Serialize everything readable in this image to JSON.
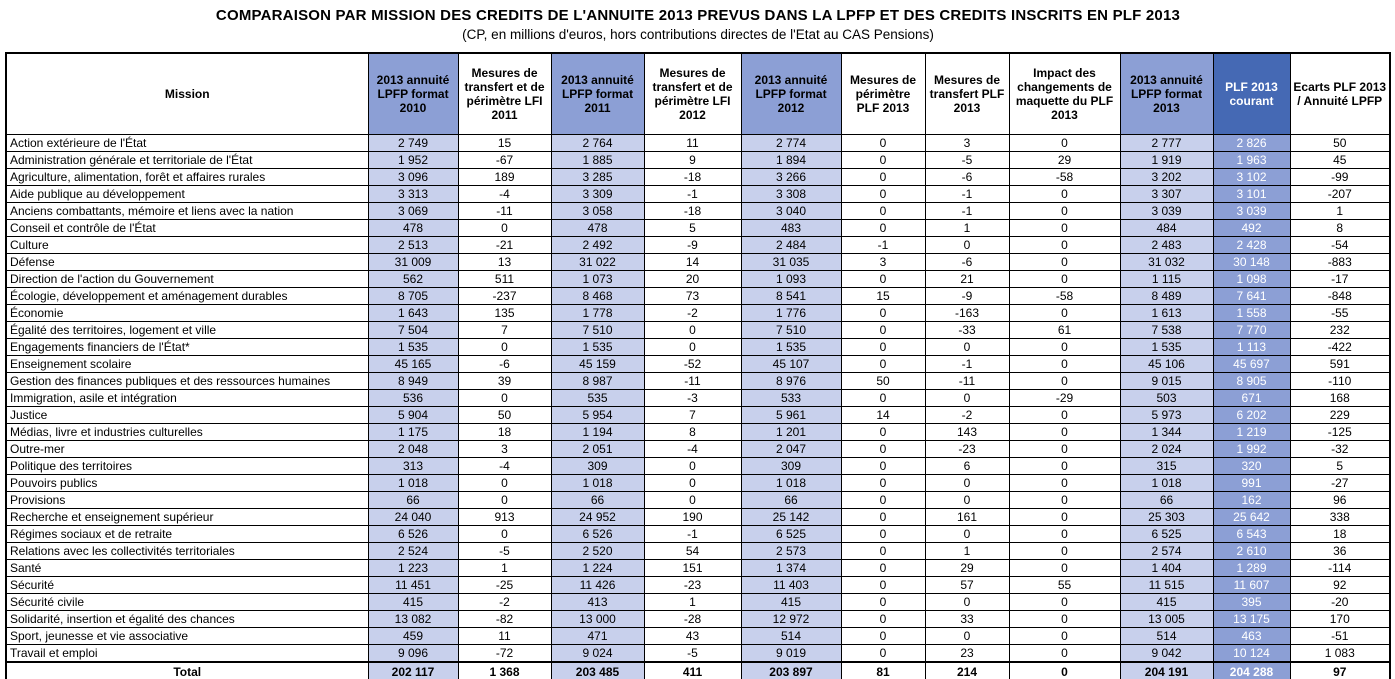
{
  "title": "COMPARAISON PAR MISSION DES CREDITS DE L'ANNUITE 2013 PREVUS DANS LA LPFP ET DES CREDITS INSCRITS EN PLF 2013",
  "subtitle": "(CP, en millions d'euros, hors contributions directes de l'Etat au CAS Pensions)",
  "colors": {
    "annuite_header": "#8C9FD5",
    "annuite_cell": "#C8D0EC",
    "plf_header": "#4569B4",
    "plf_cell": "#8C9FD5",
    "border": "#000000"
  },
  "table": {
    "columns": [
      {
        "label": "Mission",
        "type": "mission"
      },
      {
        "label": "2013 annuité LPFP format 2010",
        "type": "annuite"
      },
      {
        "label": "Mesures de transfert et de périmètre LFI 2011",
        "type": "measure"
      },
      {
        "label": "2013 annuité LPFP format 2011",
        "type": "annuite"
      },
      {
        "label": "Mesures de transfert et de périmètre LFI 2012",
        "type": "measure"
      },
      {
        "label": "2013 annuité LPFP format 2012",
        "type": "annuite"
      },
      {
        "label": "Mesures de périmètre PLF 2013",
        "type": "measure"
      },
      {
        "label": "Mesures de transfert PLF 2013",
        "type": "measure"
      },
      {
        "label": "Impact des changements de maquette du PLF 2013",
        "type": "measure"
      },
      {
        "label": "2013 annuité LPFP format 2013",
        "type": "annuite"
      },
      {
        "label": "PLF 2013 courant",
        "type": "plf"
      },
      {
        "label": "Ecarts PLF 2013 / Annuité LPFP",
        "type": "measure"
      }
    ],
    "rows": [
      {
        "mission": "Action extérieure de l'État",
        "values": [
          "2 749",
          "15",
          "2 764",
          "11",
          "2 774",
          "0",
          "3",
          "0",
          "2 777",
          "2 826",
          "50"
        ]
      },
      {
        "mission": "Administration générale et territoriale de l'État",
        "values": [
          "1 952",
          "-67",
          "1 885",
          "9",
          "1 894",
          "0",
          "-5",
          "29",
          "1 919",
          "1 963",
          "45"
        ]
      },
      {
        "mission": "Agriculture, alimentation, forêt et affaires rurales",
        "values": [
          "3 096",
          "189",
          "3 285",
          "-18",
          "3 266",
          "0",
          "-6",
          "-58",
          "3 202",
          "3 102",
          "-99"
        ]
      },
      {
        "mission": "Aide publique au développement",
        "values": [
          "3 313",
          "-4",
          "3 309",
          "-1",
          "3 308",
          "0",
          "-1",
          "0",
          "3 307",
          "3 101",
          "-207"
        ]
      },
      {
        "mission": "Anciens combattants, mémoire et liens avec la nation",
        "values": [
          "3 069",
          "-11",
          "3 058",
          "-18",
          "3 040",
          "0",
          "-1",
          "0",
          "3 039",
          "3 039",
          "1"
        ]
      },
      {
        "mission": "Conseil et contrôle de l'État",
        "values": [
          "478",
          "0",
          "478",
          "5",
          "483",
          "0",
          "1",
          "0",
          "484",
          "492",
          "8"
        ]
      },
      {
        "mission": "Culture",
        "values": [
          "2 513",
          "-21",
          "2 492",
          "-9",
          "2 484",
          "-1",
          "0",
          "0",
          "2 483",
          "2 428",
          "-54"
        ]
      },
      {
        "mission": "Défense",
        "values": [
          "31 009",
          "13",
          "31 022",
          "14",
          "31 035",
          "3",
          "-6",
          "0",
          "31 032",
          "30 148",
          "-883"
        ]
      },
      {
        "mission": "Direction de l'action du Gouvernement",
        "values": [
          "562",
          "511",
          "1 073",
          "20",
          "1 093",
          "0",
          "21",
          "0",
          "1 115",
          "1 098",
          "-17"
        ]
      },
      {
        "mission": "Écologie, développement et aménagement durables",
        "values": [
          "8 705",
          "-237",
          "8 468",
          "73",
          "8 541",
          "15",
          "-9",
          "-58",
          "8 489",
          "7 641",
          "-848"
        ]
      },
      {
        "mission": "Économie",
        "values": [
          "1 643",
          "135",
          "1 778",
          "-2",
          "1 776",
          "0",
          "-163",
          "0",
          "1 613",
          "1 558",
          "-55"
        ]
      },
      {
        "mission": "Égalité des territoires, logement et ville",
        "values": [
          "7 504",
          "7",
          "7 510",
          "0",
          "7 510",
          "0",
          "-33",
          "61",
          "7 538",
          "7 770",
          "232"
        ]
      },
      {
        "mission": "Engagements financiers de l'État*",
        "values": [
          "1 535",
          "0",
          "1 535",
          "0",
          "1 535",
          "0",
          "0",
          "0",
          "1 535",
          "1 113",
          "-422"
        ]
      },
      {
        "mission": "Enseignement scolaire",
        "values": [
          "45 165",
          "-6",
          "45 159",
          "-52",
          "45 107",
          "0",
          "-1",
          "0",
          "45 106",
          "45 697",
          "591"
        ]
      },
      {
        "mission": "Gestion des finances publiques et des ressources humaines",
        "values": [
          "8 949",
          "39",
          "8 987",
          "-11",
          "8 976",
          "50",
          "-11",
          "0",
          "9 015",
          "8 905",
          "-110"
        ]
      },
      {
        "mission": "Immigration, asile et intégration",
        "values": [
          "536",
          "0",
          "535",
          "-3",
          "533",
          "0",
          "0",
          "-29",
          "503",
          "671",
          "168"
        ]
      },
      {
        "mission": "Justice",
        "values": [
          "5 904",
          "50",
          "5 954",
          "7",
          "5 961",
          "14",
          "-2",
          "0",
          "5 973",
          "6 202",
          "229"
        ]
      },
      {
        "mission": "Médias, livre et industries culturelles",
        "values": [
          "1 175",
          "18",
          "1 194",
          "8",
          "1 201",
          "0",
          "143",
          "0",
          "1 344",
          "1 219",
          "-125"
        ]
      },
      {
        "mission": "Outre-mer",
        "values": [
          "2 048",
          "3",
          "2 051",
          "-4",
          "2 047",
          "0",
          "-23",
          "0",
          "2 024",
          "1 992",
          "-32"
        ]
      },
      {
        "mission": "Politique des territoires",
        "values": [
          "313",
          "-4",
          "309",
          "0",
          "309",
          "0",
          "6",
          "0",
          "315",
          "320",
          "5"
        ]
      },
      {
        "mission": "Pouvoirs publics",
        "values": [
          "1 018",
          "0",
          "1 018",
          "0",
          "1 018",
          "0",
          "0",
          "0",
          "1 018",
          "991",
          "-27"
        ]
      },
      {
        "mission": "Provisions",
        "values": [
          "66",
          "0",
          "66",
          "0",
          "66",
          "0",
          "0",
          "0",
          "66",
          "162",
          "96"
        ]
      },
      {
        "mission": "Recherche et enseignement supérieur",
        "values": [
          "24 040",
          "913",
          "24 952",
          "190",
          "25 142",
          "0",
          "161",
          "0",
          "25 303",
          "25 642",
          "338"
        ]
      },
      {
        "mission": "Régimes sociaux et de retraite",
        "values": [
          "6 526",
          "0",
          "6 526",
          "-1",
          "6 525",
          "0",
          "0",
          "0",
          "6 525",
          "6 543",
          "18"
        ]
      },
      {
        "mission": "Relations avec les collectivités territoriales",
        "values": [
          "2 524",
          "-5",
          "2 520",
          "54",
          "2 573",
          "0",
          "1",
          "0",
          "2 574",
          "2 610",
          "36"
        ]
      },
      {
        "mission": "Santé",
        "values": [
          "1 223",
          "1",
          "1 224",
          "151",
          "1 374",
          "0",
          "29",
          "0",
          "1 404",
          "1 289",
          "-114"
        ]
      },
      {
        "mission": "Sécurité",
        "values": [
          "11 451",
          "-25",
          "11 426",
          "-23",
          "11 403",
          "0",
          "57",
          "55",
          "11 515",
          "11 607",
          "92"
        ]
      },
      {
        "mission": "Sécurité civile",
        "values": [
          "415",
          "-2",
          "413",
          "1",
          "415",
          "0",
          "0",
          "0",
          "415",
          "395",
          "-20"
        ]
      },
      {
        "mission": "Solidarité, insertion et égalité des chances",
        "values": [
          "13 082",
          "-82",
          "13 000",
          "-28",
          "12 972",
          "0",
          "33",
          "0",
          "13 005",
          "13 175",
          "170"
        ]
      },
      {
        "mission": "Sport, jeunesse et vie associative",
        "values": [
          "459",
          "11",
          "471",
          "43",
          "514",
          "0",
          "0",
          "0",
          "514",
          "463",
          "-51"
        ]
      },
      {
        "mission": "Travail et emploi",
        "values": [
          "9 096",
          "-72",
          "9 024",
          "-5",
          "9 019",
          "0",
          "23",
          "0",
          "9 042",
          "10 124",
          "1 083"
        ]
      }
    ],
    "total": {
      "label": "Total",
      "values": [
        "202 117",
        "1 368",
        "203 485",
        "411",
        "203 897",
        "81",
        "214",
        "0",
        "204 191",
        "204 288",
        "97"
      ]
    }
  }
}
